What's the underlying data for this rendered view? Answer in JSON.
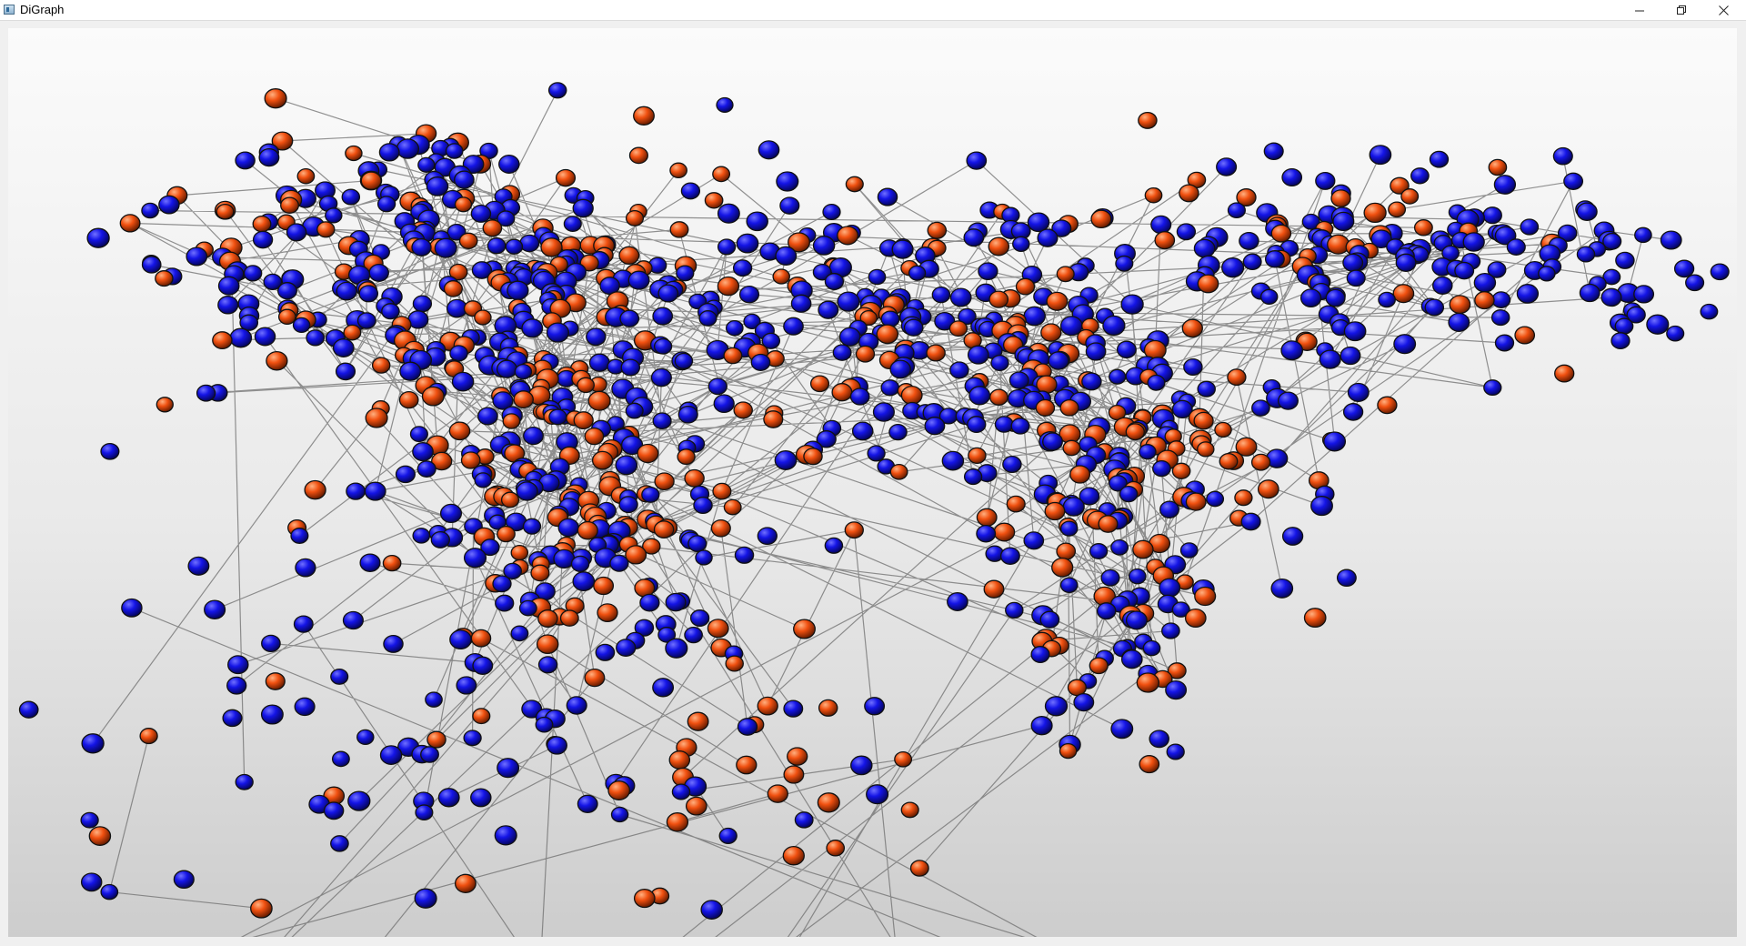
{
  "window": {
    "title": "DiGraph",
    "icon": "app-window-icon",
    "controls": [
      {
        "name": "minimize",
        "icon": "minimize-icon"
      },
      {
        "name": "restore",
        "icon": "restore-icon"
      },
      {
        "name": "close",
        "icon": "close-icon"
      }
    ]
  },
  "graph": {
    "colors": {
      "node_blue": "#1010e0",
      "node_orange": "#f05010",
      "edge": "#6e6e6e",
      "background_top": "#fbfbfb",
      "background_bottom": "#cdcdcd"
    },
    "node_kinds": [
      "blue",
      "orange"
    ]
  }
}
